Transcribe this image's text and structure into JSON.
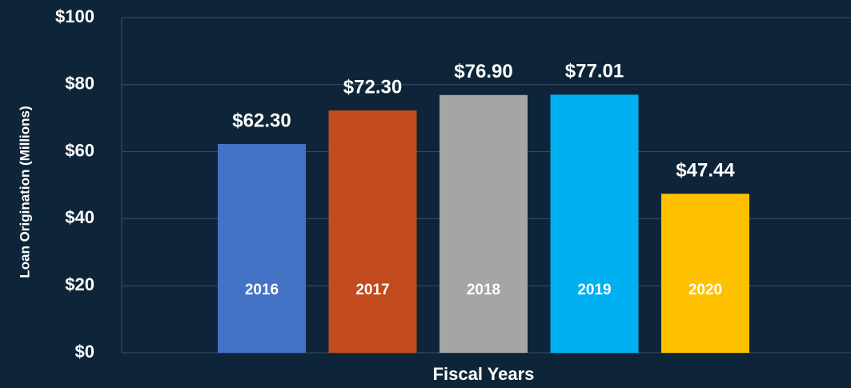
{
  "chart_data": {
    "type": "bar",
    "categories": [
      "2016",
      "2017",
      "2018",
      "2019",
      "2020"
    ],
    "values": [
      62.3,
      72.3,
      76.9,
      77.01,
      47.44
    ],
    "value_labels": [
      "$62.30",
      "$72.30",
      "$76.90",
      "$77.01",
      "$47.44"
    ],
    "colors": [
      "#4472c4",
      "#c14b1d",
      "#a5a5a5",
      "#00b0f0",
      "#ffc000"
    ],
    "ylabel": "Loan Origination (Millions)",
    "xlabel": "Fiscal Years",
    "ylim": [
      0,
      100
    ],
    "yticks": [
      {
        "value": 0,
        "label": "$0"
      },
      {
        "value": 20,
        "label": "$20"
      },
      {
        "value": 40,
        "label": "$40"
      },
      {
        "value": 60,
        "label": "$60"
      },
      {
        "value": 80,
        "label": "$80"
      },
      {
        "value": 100,
        "label": "$100"
      }
    ],
    "grid": true
  }
}
